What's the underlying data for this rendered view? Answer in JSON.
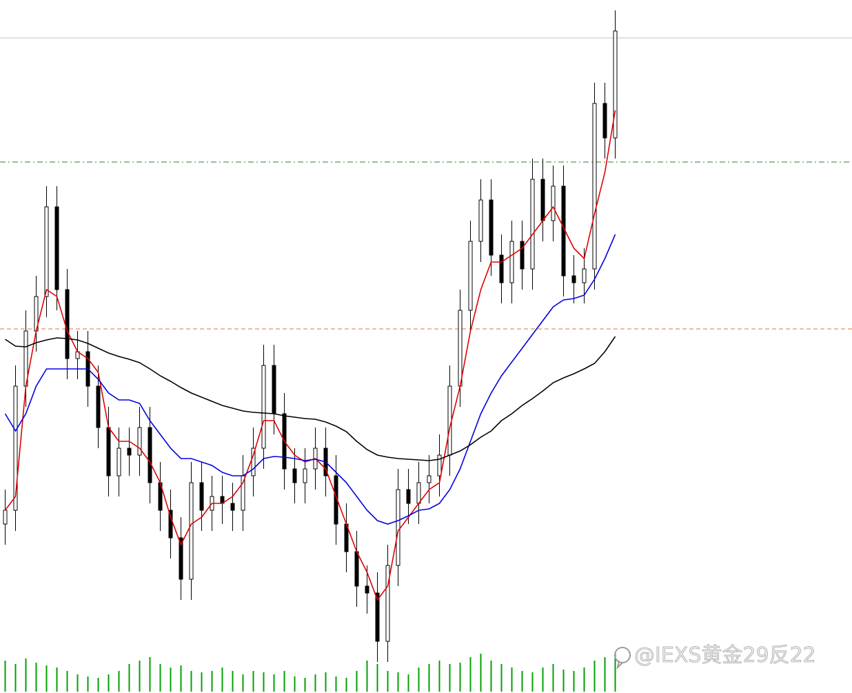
{
  "chart_data": {
    "type": "candlestick",
    "ylim": [
      0,
      100
    ],
    "open": [
      24,
      26,
      44,
      52,
      57,
      70,
      58,
      48,
      49,
      44,
      38,
      31,
      35,
      34,
      38,
      30,
      26,
      22,
      16,
      30,
      26,
      28,
      27,
      26,
      31,
      35,
      47,
      40,
      32,
      30,
      32,
      35,
      31,
      24,
      20,
      15,
      14,
      7,
      18,
      29,
      27,
      30,
      31,
      34,
      44,
      55,
      65,
      71,
      63,
      59,
      65,
      61,
      74,
      68,
      73,
      60,
      59,
      61,
      85,
      80
    ],
    "high": [
      29,
      47,
      55,
      60,
      73,
      73,
      61,
      52,
      52,
      47,
      41,
      38,
      38,
      41,
      41,
      33,
      29,
      25,
      33,
      33,
      31,
      31,
      30,
      34,
      38,
      50,
      50,
      43,
      35,
      35,
      38,
      38,
      34,
      27,
      23,
      18,
      17,
      21,
      32,
      32,
      33,
      34,
      37,
      47,
      58,
      68,
      74,
      74,
      66,
      68,
      68,
      77,
      77,
      76,
      76,
      63,
      64,
      88,
      88,
      98.5
    ],
    "low": [
      21,
      23,
      41,
      49,
      54,
      55,
      45,
      45,
      41,
      35,
      28,
      28,
      31,
      31,
      27,
      23,
      19,
      13,
      13,
      23,
      23,
      24,
      23,
      23,
      28,
      32,
      37,
      29,
      27,
      27,
      29,
      28,
      21,
      17,
      12,
      11,
      4,
      4,
      15,
      24,
      24,
      27,
      28,
      31,
      41,
      52,
      62,
      60,
      56,
      56,
      58,
      58,
      65,
      65,
      57,
      56,
      56,
      58,
      77,
      77
    ],
    "close": [
      26,
      44,
      52,
      57,
      70,
      58,
      48,
      49,
      44,
      38,
      31,
      35,
      34,
      38,
      30,
      26,
      22,
      16,
      30,
      26,
      28,
      27,
      26,
      31,
      35,
      47,
      40,
      32,
      30,
      32,
      35,
      31,
      24,
      20,
      15,
      14,
      7,
      18,
      29,
      27,
      30,
      31,
      34,
      44,
      55,
      65,
      71,
      63,
      59,
      65,
      61,
      74,
      68,
      73,
      60,
      59,
      61,
      85,
      80,
      95.5
    ],
    "up_color": "#ffffff",
    "down_color": "#000000",
    "series": [
      {
        "color": "#e00000",
        "values": [
          26,
          28,
          44,
          52,
          58,
          57,
          52,
          49,
          48,
          46,
          38,
          36,
          36,
          35,
          33,
          30,
          25,
          21,
          24,
          25,
          27,
          27,
          28,
          30,
          34,
          39,
          39,
          36,
          34,
          33,
          33.5,
          32,
          28,
          24,
          20,
          17,
          13,
          15,
          23,
          25,
          27,
          29,
          30,
          38,
          44,
          52,
          58,
          62,
          62,
          63,
          64,
          66,
          68,
          70,
          67,
          64,
          62.5,
          69,
          75,
          84
        ]
      },
      {
        "color": "#0000e0",
        "values": [
          40,
          37.5,
          40,
          44,
          46.5,
          46.5,
          46.5,
          46.5,
          46.5,
          45,
          43,
          42,
          42,
          41.5,
          39,
          37,
          35,
          33.5,
          33.5,
          33,
          32.5,
          31.5,
          31,
          31,
          32,
          33.5,
          33.8,
          33.7,
          33.5,
          33.2,
          33.4,
          33,
          31.5,
          30,
          28,
          26,
          24.5,
          24,
          24.5,
          25.2,
          26,
          26.2,
          27,
          29,
          32,
          36,
          40,
          43,
          45.5,
          47.5,
          49.5,
          51.5,
          53.5,
          55.5,
          56.5,
          56.7,
          57.2,
          59.5,
          62.5,
          66
        ]
      },
      {
        "color": "#000000",
        "values": [
          50.8,
          49.8,
          49.7,
          50.3,
          50.7,
          51,
          50.9,
          50.7,
          50.2,
          49.5,
          48.8,
          48.3,
          47.9,
          47.4,
          46.5,
          45.5,
          44.7,
          43.8,
          43,
          42.4,
          41.8,
          41.2,
          40.8,
          40.4,
          40.2,
          40.1,
          40,
          39.7,
          39.5,
          39.3,
          39.2,
          38.8,
          38.2,
          37.4,
          36,
          34.8,
          34,
          33.7,
          33.5,
          33.4,
          33.3,
          33.2,
          33.4,
          34,
          34.6,
          35.5,
          36.6,
          37.5,
          39,
          40,
          41.2,
          42.2,
          43.3,
          44.5,
          45.2,
          45.8,
          46.5,
          47.3,
          49,
          51.2
        ]
      }
    ],
    "levels": [
      {
        "value": 94.5,
        "color": "#c0c0c0",
        "style": "solid"
      },
      {
        "value": 76.5,
        "color": "#2e7d32",
        "style": "dashdot"
      },
      {
        "value": 52.3,
        "color": "#e0703a",
        "style": "dash"
      }
    ],
    "volume": [
      45,
      40,
      48,
      42,
      38,
      35,
      30,
      25,
      22,
      20,
      25,
      30,
      40,
      45,
      50,
      40,
      35,
      38,
      30,
      28,
      30,
      35,
      30,
      25,
      30,
      28,
      25,
      30,
      22,
      20,
      25,
      28,
      22,
      20,
      30,
      45,
      40,
      30,
      28,
      25,
      35,
      40,
      45,
      40,
      42,
      50,
      55,
      45,
      40,
      35,
      30,
      28,
      35,
      40,
      32,
      30,
      35,
      45,
      50,
      55
    ],
    "volume_lim": [
      0,
      60
    ],
    "volume_color": "#00a000"
  },
  "watermark": "@IEXS黄金29反22"
}
